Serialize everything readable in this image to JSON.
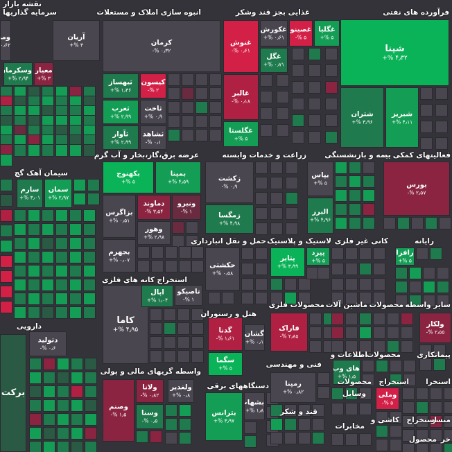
{
  "map_title": "نقشه بازار",
  "sectors": [
    "فرآورده های نفتی",
    "غذایی بجز قند وشکر",
    "انبوه سازی املاک و مستغلات",
    "سرمایه گذاریها",
    "فعالیتهای کمکی به",
    "بیمه و بازنشستگی",
    "زراعت و خدمات وابسته",
    "عرضه برق،گاز،بخار و آب گرم",
    "سیمان آهک گچ",
    "رایانه",
    "کانی غیر فلزی",
    "لاستیک و پلاستیک",
    "حمل و نقل انبارداری",
    "استخراج کانه های فلزی",
    "محصولات",
    "ماشین آلات",
    "محصولات فلزی",
    "سایر واسطه",
    "پیمانکاری",
    "محصولات",
    "اطلاعات و",
    "فنی و مهندسی",
    "هتل و رستوران",
    "دارویی",
    "واسطه گریهای مالی و پولی",
    "دستگاههای برقی",
    "وسایل",
    "قند و شکر",
    "مخابرات",
    "استخراج",
    "محصولات",
    "استخرا",
    "کاشی و",
    "منسو",
    "استخراج",
    "خر",
    "محصول"
  ],
  "tiles": {
    "shepna": {
      "name": "شپنا",
      "pct": "۴٫۳۲ %+"
    },
    "shetran": {
      "name": "شتران",
      "pct": "۳٫۹۶ %+"
    },
    "shebriz": {
      "name": "شبریز",
      "pct": "۴٫۱۱ %+"
    },
    "ghegoli": {
      "name": "غگلپا",
      "pct": "۵ %+"
    },
    "ghesina": {
      "name": "غصینو",
      "pct": "۵ %-"
    },
    "ghekurosh": {
      "name": "غکورش",
      "pct": "۰٫۶۱ %+"
    },
    "ghegol": {
      "name": "غگل",
      "pct": "۰٫۷۱ %+"
    },
    "ghenush": {
      "name": "غنوش",
      "pct": "۰٫۶۱ %-"
    },
    "ghalbor": {
      "name": "غالبر",
      "pct": "۰٫۱۸ %-"
    },
    "ghegolesta": {
      "name": "غگلستا",
      "pct": "۵ %+"
    },
    "kerman": {
      "name": "کرمان",
      "pct": "۰٫۳۲ %-"
    },
    "kisun": {
      "name": "کیسون",
      "pct": "۲ %-"
    },
    "sabhanaz": {
      "name": "ثبهساز",
      "pct": "۱٫۳۶ %+"
    },
    "sefarb": {
      "name": "ثغرب",
      "pct": "۲٫۹۹ %+"
    },
    "sakht": {
      "name": "ثاخت",
      "pct": "۰٫۹ %+"
    },
    "saavar": {
      "name": "ثآوار",
      "pct": "۲٫۹۹ %+"
    },
    "shahed": {
      "name": "ثشاهد",
      "pct": "۰٫۱ %-"
    },
    "arian": {
      "name": "آریان",
      "pct": "۳ %+"
    },
    "vaskerman": {
      "name": "وسکرمان",
      "pct": "۲٫۹۴ %+"
    },
    "meyar": {
      "name": "معیار",
      "pct": "۳ %+"
    },
    "medir": {
      "name": "ومد",
      "pct": "۰٫۶۲ %+"
    },
    "bourse": {
      "name": "بورس",
      "pct": "۲٫۵۷ %-"
    },
    "bias": {
      "name": "بپاس",
      "pct": "۵ %+"
    },
    "alborz": {
      "name": "البرز",
      "pct": "۴٫۹۶ %+"
    },
    "zagsht": {
      "name": "زکشت",
      "pct": "۰٫۹ %-"
    },
    "zemegsa": {
      "name": "زمگسا",
      "pct": "۴٫۹۸ %+"
    },
    "bekhuz": {
      "name": "بکهنوج",
      "pct": "۵ %+"
    },
    "bamapa": {
      "name": "بمپنا",
      "pct": "۴٫۵۹ %+"
    },
    "bazagros": {
      "name": "بزاگرس",
      "pct": "۰٫۵۱ %+"
    },
    "damavand": {
      "name": "دماوند",
      "pct": "۳٫۵۴ %-"
    },
    "vanirov": {
      "name": "ونیرو",
      "pct": "۱ %-"
    },
    "vahur": {
      "name": "وهور",
      "pct": "۲٫۹۸ %+"
    },
    "bajahrom": {
      "name": "بجهرم",
      "pct": "۰٫۰۷ %+"
    },
    "saram": {
      "name": "سارم",
      "pct": "۳٫۰۱ %+"
    },
    "seman": {
      "name": "سمان",
      "pct": "۲٫۹۷ %+"
    },
    "rafza": {
      "name": "رافزا",
      "pct": "۵ %+"
    },
    "hakshti": {
      "name": "حکشتی",
      "pct": "۰٫۵۸ %+"
    },
    "patayer": {
      "name": "پتایر",
      "pct": "۳٫۹۹ %+"
    },
    "peyzd": {
      "name": "پیزد",
      "pct": "۵ %+"
    },
    "kama": {
      "name": "کاما",
      "pct": "۴٫۹۵ %+"
    },
    "tasiko": {
      "name": "تاصیکو",
      "pct": "۱ %-"
    },
    "apal": {
      "name": "اپال",
      "pct": "۱٫۰۴ %+"
    },
    "farak": {
      "name": "فاراک",
      "pct": "۲٫۸۵ %-"
    },
    "valkar": {
      "name": "ولکار",
      "pct": "۲٫۵۵ %-"
    },
    "haywab": {
      "name": "های وب",
      "pct": "۱٫۵ %+"
    },
    "ganda": {
      "name": "گدنا",
      "pct": "۱٫۶۱ %-"
    },
    "gashan": {
      "name": "گشان",
      "pct": "۰٫۱ %+"
    },
    "sagma": {
      "name": "سگما",
      "pct": "۵ %+"
    },
    "ramapa": {
      "name": "رمپنا",
      "pct": "۰٫۸۲ %+"
    },
    "dalosid": {
      "name": "دتولید",
      "pct": "۰٫۶ %-"
    },
    "barkat": {
      "name": "برکت",
      "pct": ""
    },
    "velata": {
      "name": "ولانا",
      "pct": "۰٫۸۲ %-"
    },
    "valghadir": {
      "name": "ولغدیر",
      "pct": "۰٫۸ %+"
    },
    "vasanam": {
      "name": "وصنم",
      "pct": "۱٫۵ %-"
    },
    "vasna": {
      "name": "وسنا",
      "pct": "۰٫۵ %-"
    },
    "betaranc": {
      "name": "بترانس",
      "pct": "۳٫۹۷ %+"
    },
    "bashab": {
      "name": "بشهاب",
      "pct": "۱٫۸ %+"
    },
    "vamelli": {
      "name": "وملی",
      "pct": "۵ %-"
    }
  }
}
